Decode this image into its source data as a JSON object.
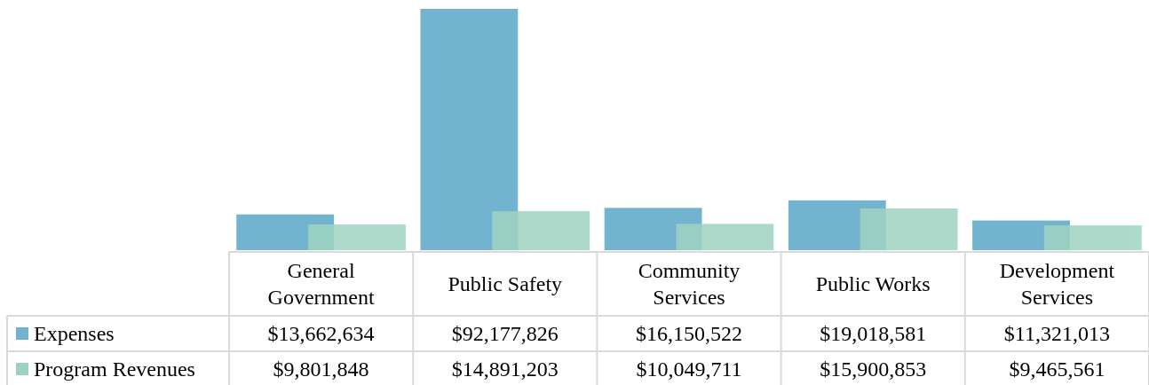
{
  "chart_data": {
    "type": "bar",
    "categories": [
      "General\nGovernment",
      "Public Safety",
      "Community\nServices",
      "Public Works",
      "Development\nServices"
    ],
    "series": [
      {
        "name": "Expenses",
        "color": "#72b4cf",
        "values": [
          13662634,
          92177826,
          16150522,
          19018581,
          11321013
        ],
        "value_labels": [
          "$13,662,634",
          "$92,177,826",
          "$16,150,522",
          "$19,018,581",
          "$11,321,013"
        ]
      },
      {
        "name": "Program Revenues",
        "color": "#9fd3c1",
        "values": [
          9801848,
          14891203,
          10049711,
          15900853,
          9465561
        ],
        "value_labels": [
          "$9,801,848",
          "$14,891,203",
          "$10,049,711",
          "$15,900,853",
          "$9,465,561"
        ]
      }
    ],
    "legend": "bottom left"
  }
}
